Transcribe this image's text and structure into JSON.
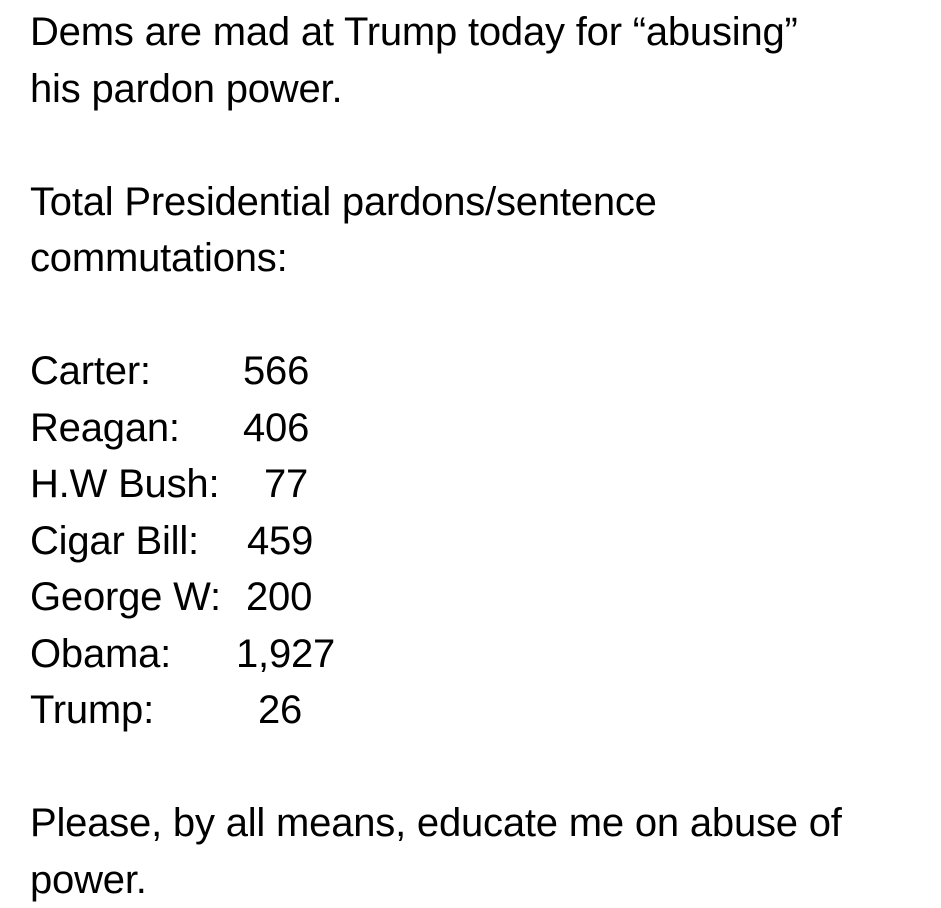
{
  "intro": {
    "line1": "Dems are mad at Trump today for “abusing”",
    "line2": "his pardon power."
  },
  "heading": {
    "line1": "Total Presidential pardons/sentence",
    "line2": "commutations:"
  },
  "pardons": [
    {
      "name": "Carter:",
      "count": "566"
    },
    {
      "name": "Reagan:",
      "count": "406"
    },
    {
      "name": "H.W Bush:",
      "count": "77"
    },
    {
      "name": "Cigar Bill:",
      "count": "459"
    },
    {
      "name": "George W:",
      "count": "200"
    },
    {
      "name": "Obama:",
      "count": "1,927"
    },
    {
      "name": "Trump:",
      "count": "26"
    }
  ],
  "closing": {
    "line1": "Please, by all means, educate me on abuse of",
    "line2": "power."
  }
}
